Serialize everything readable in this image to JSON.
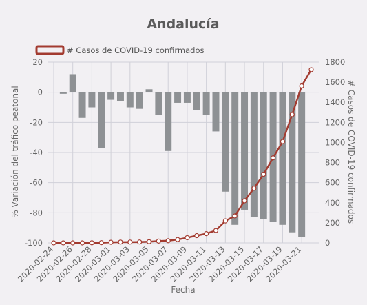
{
  "chart_data": {
    "type": "bar+line",
    "title": "Andalucía",
    "xlabel": "Fecha",
    "ylabel_left": "% Variación del tráfico peatonal",
    "ylabel_right": "# Casos de COVID-19 confirmados",
    "ylim_left": [
      -100,
      20
    ],
    "ylim_right": [
      0,
      1800
    ],
    "left_ticks": [
      20,
      0,
      -20,
      -40,
      -60,
      -80,
      -100
    ],
    "right_ticks": [
      1800,
      1600,
      1400,
      1200,
      1000,
      800,
      600,
      400,
      200,
      0
    ],
    "grid": true,
    "legend_position": "top-left",
    "x": [
      "2020-02-24",
      "2020-02-25",
      "2020-02-26",
      "2020-02-27",
      "2020-02-28",
      "2020-02-29",
      "2020-03-01",
      "2020-03-02",
      "2020-03-03",
      "2020-03-04",
      "2020-03-05",
      "2020-03-06",
      "2020-03-07",
      "2020-03-08",
      "2020-03-09",
      "2020-03-10",
      "2020-03-11",
      "2020-03-12",
      "2020-03-13",
      "2020-03-14",
      "2020-03-15",
      "2020-03-16",
      "2020-03-17",
      "2020-03-18",
      "2020-03-19",
      "2020-03-20",
      "2020-03-21",
      "2020-03-22"
    ],
    "x_tick_labels": [
      "2020-02-24",
      "2020-02-26",
      "2020-02-28",
      "2020-03-01",
      "2020-03-03",
      "2020-03-05",
      "2020-03-07",
      "2020-03-09",
      "2020-03-11",
      "2020-03-13",
      "2020-03-15",
      "2020-03-17",
      "2020-03-19",
      "2020-03-21"
    ],
    "series": [
      {
        "name": "",
        "kind": "bar",
        "axis": "left",
        "color": "#8e9194",
        "values": [
          null,
          -1,
          12,
          -17,
          -10,
          -37,
          -5,
          -6,
          -10,
          -11,
          2,
          -15,
          -39,
          -7,
          -7,
          -12,
          -15,
          -26,
          -66,
          -88,
          -78,
          -83,
          -84,
          -86,
          -88,
          -93,
          -96,
          null
        ]
      },
      {
        "name": "# Casos de COVID-19 confirmados",
        "kind": "line",
        "axis": "right",
        "color": "#a33b30",
        "values": [
          0,
          0,
          0,
          0,
          1,
          2,
          6,
          8,
          8,
          9,
          12,
          18,
          22,
          33,
          52,
          72,
          92,
          123,
          219,
          268,
          419,
          544,
          683,
          847,
          1009,
          1278,
          1563,
          1725
        ]
      }
    ]
  }
}
